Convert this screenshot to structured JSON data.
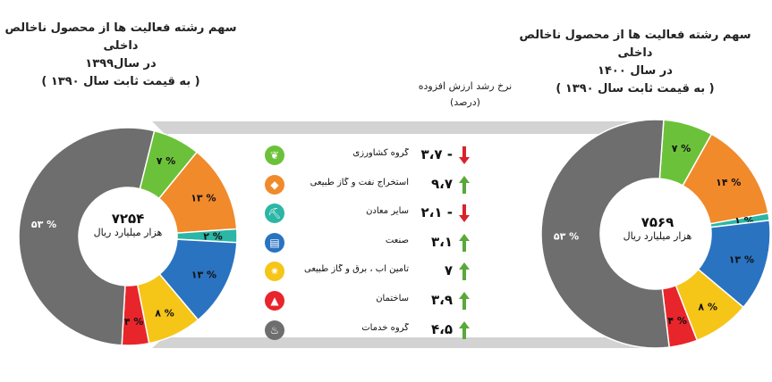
{
  "left_title": {
    "line1": "سهم رشته فعالیت ها از محصول ناخالص داخلی",
    "line2": "در سال۱۳۹۹",
    "line3": "( به قیمت ثابت سال ۱۳۹۰ )"
  },
  "right_title": {
    "line1": "سهم رشته فعالیت ها از محصول ناخالص داخلی",
    "line2": "در سال ۱۴۰۰",
    "line3": "( به قیمت ثابت سال ۱۳۹۰ )"
  },
  "growth_header": {
    "line1": "نرخ رشد ارزش افزوده",
    "line2": "(درصد)"
  },
  "colors": {
    "agriculture": "#6cc13a",
    "oil_gas": "#f18a2b",
    "mining": "#2bb6a6",
    "industry": "#2a73c1",
    "utilities": "#f5c518",
    "construction": "#e8252b",
    "services": "#6e6e6e",
    "up_arrow": "#5aa83a",
    "down_arrow": "#d9232a"
  },
  "chart_data": [
    {
      "type": "pie",
      "title": "سهم رشته فعالیت ها از محصول ناخالص داخلی در سال۱۳۹۹",
      "total": "۷۲۵۴",
      "unit": "هزار میلیارد ریال",
      "categories": [
        "agriculture",
        "oil_gas",
        "mining",
        "industry",
        "utilities",
        "construction",
        "services"
      ],
      "values": [
        7,
        13,
        2,
        13,
        8,
        4,
        53
      ],
      "labels": [
        "۷ %",
        "۱۳ %",
        "۲ %",
        "۱۳ %",
        "۸ %",
        "۴ %",
        "۵۳ %"
      ]
    },
    {
      "type": "pie",
      "title": "سهم رشته فعالیت ها از محصول ناخالص داخلی در سال ۱۴۰۰",
      "total": "۷۵۶۹",
      "unit": "هزار میلیارد ریال",
      "categories": [
        "agriculture",
        "oil_gas",
        "mining",
        "industry",
        "utilities",
        "construction",
        "services"
      ],
      "values": [
        7,
        14,
        1,
        13,
        8,
        4,
        53
      ],
      "labels": [
        "۷ %",
        "۱۴ %",
        "۱ %",
        "۱۳ %",
        "۸ %",
        "۴ %",
        "۵۳ %"
      ]
    },
    {
      "type": "table",
      "title": "نرخ رشد ارزش افزوده (درصد)",
      "rows": [
        {
          "key": "agriculture",
          "label": "گروه کشاورزی",
          "value": -3.7,
          "display": "۳،۷ -",
          "direction": "down",
          "icon": "wheat-icon"
        },
        {
          "key": "oil_gas",
          "label": "استخراج نفت و گاز طبیعی",
          "value": 9.7,
          "display": "۹،۷",
          "direction": "up",
          "icon": "oil-drop-icon"
        },
        {
          "key": "mining",
          "label": "سایر معادن",
          "value": -2.1,
          "display": "۲،۱ -",
          "direction": "down",
          "icon": "mine-cart-icon"
        },
        {
          "key": "industry",
          "label": "صنعت",
          "value": 3.1,
          "display": "۳،۱",
          "direction": "up",
          "icon": "factory-icon"
        },
        {
          "key": "utilities",
          "label": "تأمین آب ، برق و گاز طبیعی",
          "value": 7,
          "display": "۷",
          "direction": "up",
          "icon": "bulb-icon"
        },
        {
          "key": "construction",
          "label": "ساختمان",
          "value": 3.9,
          "display": "۳،۹",
          "direction": "up",
          "icon": "helmet-icon"
        },
        {
          "key": "services",
          "label": "گروه خدمات",
          "value": 4.5,
          "display": "۴،۵",
          "direction": "up",
          "icon": "service-bell-icon"
        }
      ]
    }
  ]
}
